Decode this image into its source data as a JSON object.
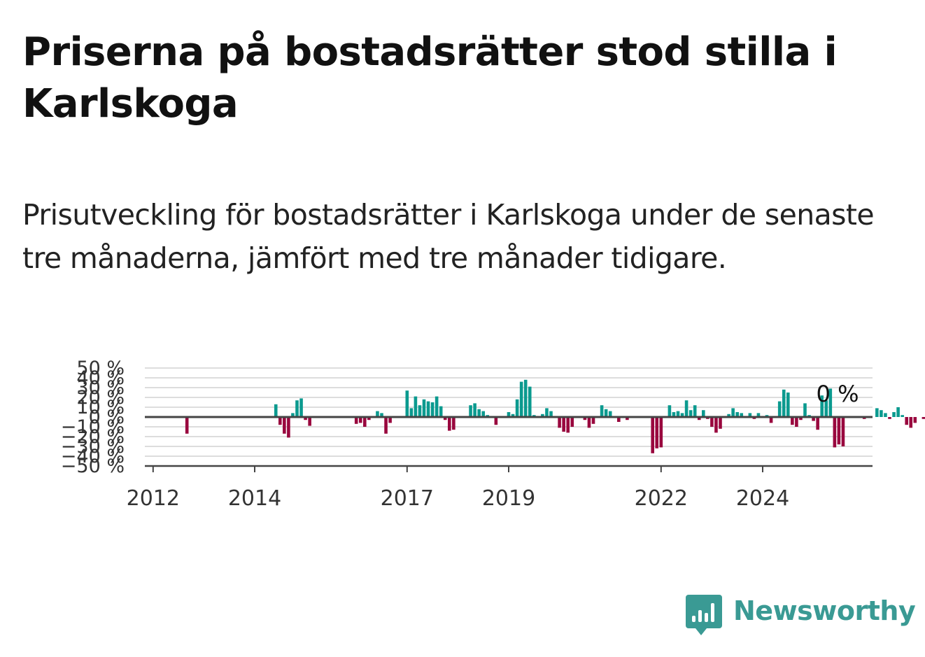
{
  "title": "Priserna på bostadsrätter stod stilla i Karlskoga",
  "subtitle": "Prisutveckling för bostadsrätter i Karlskoga under de senaste tre månaderna, jämfört med tre månader tidigare.",
  "brand": {
    "name": "Newsworthy",
    "color": "#3a9a94",
    "icon": "bar-chart-speech-bubble-icon"
  },
  "colors": {
    "positive": "#0b9a8f",
    "negative": "#99073e",
    "grid": "#dddddd",
    "axis": "#444444"
  },
  "chart_data": {
    "type": "bar",
    "title": "",
    "xlabel": "",
    "ylabel": "",
    "ylim": [
      -50,
      50
    ],
    "yticks": [
      50,
      40,
      30,
      20,
      10,
      0,
      -10,
      -20,
      -30,
      -40,
      -50
    ],
    "ytick_labels": [
      "50 %",
      "40 %",
      "30 %",
      "20 %",
      "10 %",
      "0 %",
      "−10 %",
      "−20 %",
      "−30 %",
      "−40 %",
      "−50 %"
    ],
    "xtick_labels": [
      "2012",
      "2014",
      "2017",
      "2019",
      "2022",
      "2024"
    ],
    "grid": true,
    "latest_label": "0 %",
    "start": "2011-01",
    "interval": "month",
    "values": [
      0,
      0,
      0,
      0,
      0,
      0,
      0,
      0,
      0,
      0,
      0,
      0,
      0,
      0,
      0,
      0,
      0,
      0,
      0,
      0,
      -17,
      0,
      0,
      0,
      0,
      0,
      0,
      0,
      0,
      0,
      0,
      0,
      0,
      0,
      0,
      0,
      0,
      0,
      0,
      0,
      0,
      13,
      -8,
      -17,
      -21,
      4,
      17,
      19,
      -3,
      -9,
      0,
      0,
      0,
      0,
      0,
      0,
      0,
      0,
      0,
      0,
      -7,
      -6,
      -10,
      -3,
      0,
      6,
      4,
      -17,
      -6,
      0,
      0,
      0,
      27,
      9,
      21,
      12,
      18,
      16,
      15,
      21,
      11,
      -3,
      -14,
      -13,
      0,
      0,
      0,
      12,
      14,
      8,
      6,
      2,
      0,
      -8,
      0,
      0,
      5,
      3,
      18,
      36,
      38,
      31,
      2,
      0,
      3,
      9,
      6,
      0,
      -11,
      -15,
      -16,
      -10,
      0,
      0,
      -3,
      -11,
      -7,
      0,
      12,
      8,
      6,
      0,
      -5,
      0,
      -3,
      0,
      0,
      0,
      0,
      0,
      -37,
      -32,
      -31,
      0,
      12,
      5,
      6,
      4,
      17,
      7,
      12,
      -3,
      7,
      -2,
      -10,
      -16,
      -12,
      0,
      3,
      9,
      5,
      4,
      0,
      4,
      -2,
      4,
      0,
      2,
      -6,
      0,
      16,
      28,
      25,
      -8,
      -10,
      -3,
      14,
      2,
      -4,
      -13,
      22,
      17,
      29,
      -31,
      -28,
      -30,
      0,
      0,
      0,
      0,
      -2,
      0,
      0,
      9,
      7,
      4,
      -2,
      5,
      10,
      2,
      -8,
      -11,
      -6,
      0,
      -2,
      0,
      4,
      0,
      5,
      0
    ]
  }
}
